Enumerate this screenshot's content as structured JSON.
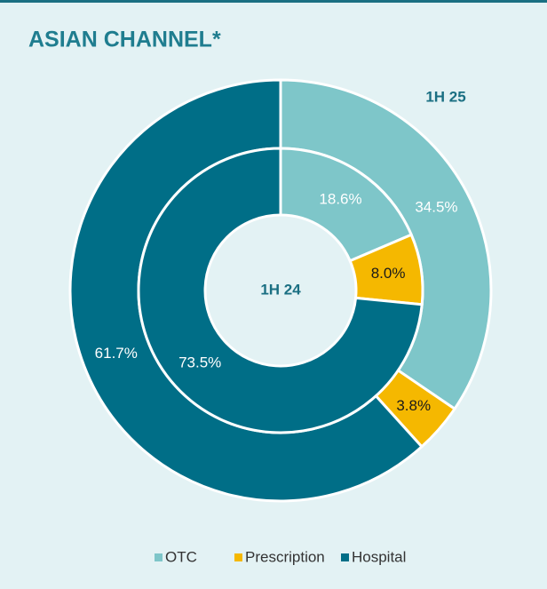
{
  "chart_data": {
    "type": "donut",
    "title": "ASIAN CHANNEL*",
    "categories": [
      "OTC",
      "Prescription",
      "Hospital"
    ],
    "colors": [
      "#7ec6c9",
      "#f5b800",
      "#006e87"
    ],
    "series": [
      {
        "name": "1H 25",
        "values": [
          34.5,
          3.8,
          61.7
        ],
        "value_labels": [
          "34.5%",
          "3.8%",
          "61.7%"
        ]
      },
      {
        "name": "1H 24",
        "values": [
          18.6,
          8,
          73.5
        ],
        "value_labels": [
          "18.6%",
          "8.0%",
          "73.5%"
        ]
      }
    ]
  }
}
